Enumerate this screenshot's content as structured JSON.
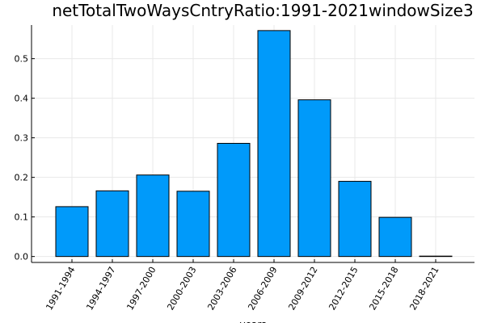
{
  "chart_data": {
    "type": "bar",
    "title": "netTotalTwoWaysCntryRatio:1991-2021windowSize3",
    "xlabel": "years",
    "ylabel": "",
    "categories": [
      "1991-1994",
      "1994-1997",
      "1997-2000",
      "2000-2003",
      "2003-2006",
      "2006-2009",
      "2009-2012",
      "2012-2015",
      "2015-2018",
      "2018-2021"
    ],
    "values": [
      0.126,
      0.166,
      0.206,
      0.165,
      0.286,
      0.571,
      0.396,
      0.19,
      0.099,
      0.001
    ],
    "ylim": [
      -0.015,
      0.585
    ],
    "yticks": [
      0.0,
      0.1,
      0.2,
      0.3,
      0.4,
      0.5
    ],
    "ytick_labels": [
      "0.0",
      "0.1",
      "0.2",
      "0.3",
      "0.4",
      "0.5"
    ],
    "grid": true,
    "legend": "none",
    "bar_color": "#009AFA"
  }
}
